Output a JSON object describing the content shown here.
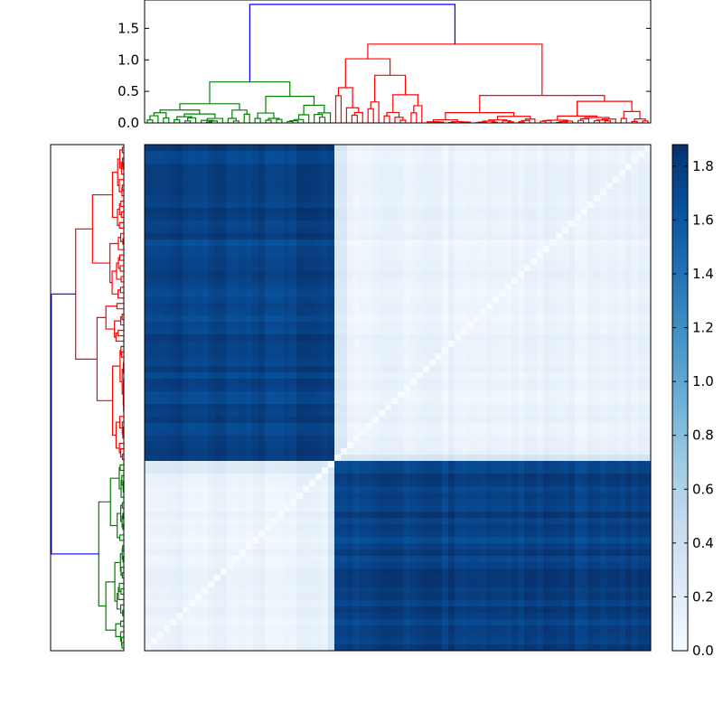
{
  "chart_data": [
    {
      "type": "dendrogram",
      "orientation": "top",
      "ylim": [
        0,
        1.95
      ],
      "yticks": [
        0.0,
        0.5,
        1.0,
        1.5
      ],
      "ytick_labels": [
        "0.0",
        "0.5",
        "1.0",
        "1.5"
      ],
      "root_height": 1.88,
      "clusters": [
        {
          "color": "#008000",
          "merge_height": 0.65,
          "leaf_share": 0.37
        },
        {
          "color": "#ff0000",
          "merge_height": 1.25,
          "leaf_share": 0.63
        }
      ],
      "root_link_color": "#0000ff"
    },
    {
      "type": "dendrogram",
      "orientation": "left",
      "ticks_visible": false,
      "clusters": [
        {
          "color": "#ff0000",
          "leaf_share": 0.63
        },
        {
          "color": "#008000",
          "leaf_share": 0.37
        }
      ],
      "root_link_color": "#0000ff"
    },
    {
      "type": "heatmap",
      "colormap": "Blues",
      "block_split_fraction": 0.37,
      "within_block_value_range": [
        0.0,
        0.5
      ],
      "between_block_value_range": [
        1.5,
        1.88
      ],
      "diagonal_value": 0.0,
      "ticks_visible": false
    },
    {
      "type": "colorbar",
      "colormap": "Blues",
      "vmin": 0.0,
      "vmax": 1.88,
      "ticks": [
        0.0,
        0.2,
        0.4,
        0.6,
        0.8,
        1.0,
        1.2,
        1.4,
        1.6,
        1.8
      ],
      "tick_labels": [
        "0.0",
        "0.2",
        "0.4",
        "0.6",
        "0.8",
        "1.0",
        "1.2",
        "1.4",
        "1.6",
        "1.8"
      ]
    }
  ],
  "colors": {
    "cluster_a": "#008000",
    "cluster_b": "#ff0000",
    "root_link": "#0000ff",
    "colormap_low": "#f7fbff",
    "colormap_high": "#08306b"
  }
}
